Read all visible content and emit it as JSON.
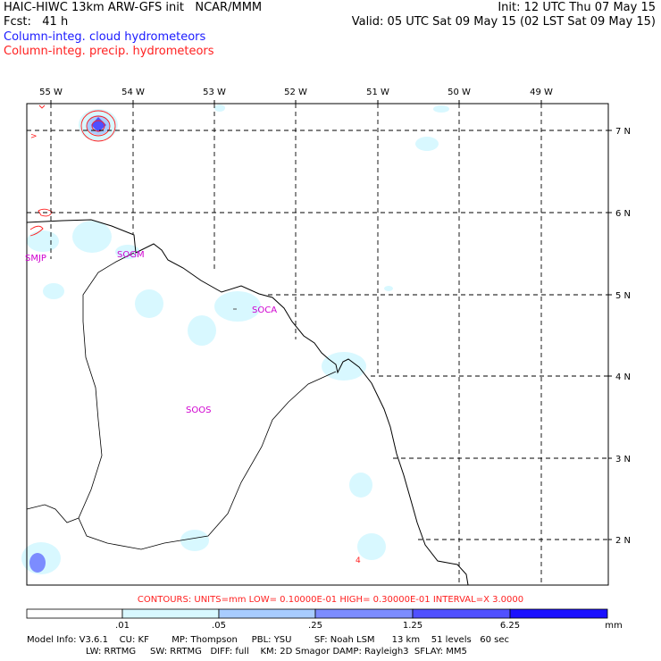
{
  "header": {
    "line1_left": "HAIC-HIWC 13km ARW-GFS init   NCAR/MMM",
    "line1_right": "Init: 12 UTC Thu 07 May 15",
    "line2_left": "Fcst:   41 h",
    "line2_right": "Valid: 05 UTC Sat 09 May 15 (02 LST Sat 09 May 15)",
    "legend_cloud": "Column-integ. cloud hydrometeors",
    "legend_precip": "Column-integ. precip. hydrometeors"
  },
  "map": {
    "lon_labels": [
      "55 W",
      "54 W",
      "53 W",
      "52 W",
      "51 W",
      "50 W",
      "49 W"
    ],
    "lat_labels": [
      "7 N",
      "6 N",
      "5 N",
      "4 N",
      "3 N",
      "2 N"
    ],
    "stations": [
      "SMJP",
      "SOGM",
      "SOCA",
      "SOOS"
    ],
    "contour_marks": [
      ">",
      "4"
    ]
  },
  "colors": {
    "cloud": "#1a1aff",
    "precip": "#ff2020",
    "station": "#d000d0",
    "fill_levels": [
      "#ffffff",
      "#d8f8ff",
      "#a8ccff",
      "#7c8cff",
      "#5050ff",
      "#1a10ff"
    ]
  },
  "contours_line": "CONTOURS:  UNITS=mm  LOW= 0.10000E-01  HIGH= 0.30000E-01  INTERVAL=X  3.0000",
  "colorbar": {
    "labels": [
      ".01",
      ".05",
      ".25",
      "1.25",
      "6.25"
    ],
    "units": "mm"
  },
  "footer": {
    "line1": "Model Info: V3.6.1    CU: KF        MP: Thompson     PBL: YSU        SF: Noah LSM      13 km    51 levels   60 sec",
    "line2": "LW: RRTMG     SW: RRTMG   DIFF: full    KM: 2D Smagor DAMP: Rayleigh3  SFLAY: MM5"
  }
}
